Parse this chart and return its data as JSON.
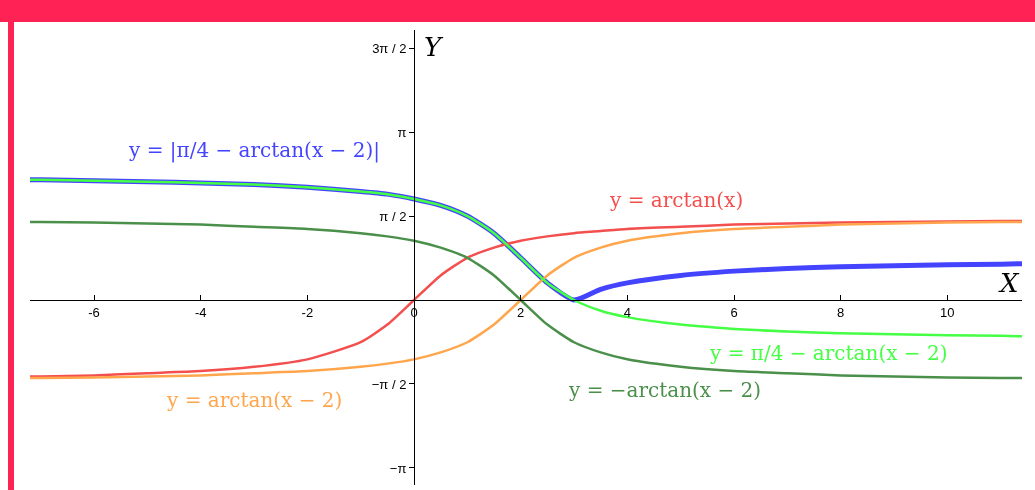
{
  "chart_data": {
    "type": "line",
    "xlabel": "X",
    "ylabel": "Y",
    "x": [
      -7.2,
      -7,
      -6,
      -5,
      -4,
      -3,
      -2,
      -1,
      -0.5,
      0,
      0.5,
      1,
      1.5,
      2,
      2.5,
      3,
      3.5,
      4,
      5,
      6,
      7,
      8,
      9,
      10,
      11,
      11.4
    ],
    "series": [
      {
        "name": "y = |π/4 − arctan(x − 2)|",
        "color": "#4444ff",
        "values": [
          2.25,
          2.25,
          2.23,
          2.21,
          2.19,
          2.16,
          2.11,
          2.03,
          1.98,
          1.89,
          1.77,
          1.57,
          1.25,
          0.79,
          0.32,
          0,
          0.2,
          0.32,
          0.46,
          0.54,
          0.59,
          0.62,
          0.64,
          0.66,
          0.67,
          0.68
        ]
      },
      {
        "name": "y = arctan(x)",
        "color": "#f44f4f",
        "values": [
          -1.43,
          -1.43,
          -1.41,
          -1.37,
          -1.33,
          -1.25,
          -1.11,
          -0.79,
          -0.46,
          0,
          0.46,
          0.79,
          0.98,
          1.11,
          1.19,
          1.25,
          1.29,
          1.33,
          1.37,
          1.41,
          1.43,
          1.45,
          1.46,
          1.47,
          1.48,
          1.48
        ]
      },
      {
        "name": "y = arctan(x − 2)",
        "color": "#ffa64d",
        "values": [
          -1.46,
          -1.46,
          -1.45,
          -1.43,
          -1.41,
          -1.37,
          -1.33,
          -1.25,
          -1.19,
          -1.11,
          -0.98,
          -0.79,
          -0.46,
          0,
          0.46,
          0.79,
          0.98,
          1.11,
          1.25,
          1.33,
          1.37,
          1.41,
          1.43,
          1.45,
          1.46,
          1.46
        ]
      },
      {
        "name": "y = −arctan(x − 2)",
        "color": "#4a8f4a",
        "values": [
          1.46,
          1.46,
          1.45,
          1.43,
          1.41,
          1.37,
          1.33,
          1.25,
          1.19,
          1.11,
          0.98,
          0.79,
          0.46,
          0,
          -0.46,
          -0.79,
          -0.98,
          -1.11,
          -1.25,
          -1.33,
          -1.37,
          -1.41,
          -1.43,
          -1.45,
          -1.46,
          -1.46
        ]
      },
      {
        "name": "y = π/4 − arctan(x − 2)",
        "color": "#44ff44",
        "values": [
          2.25,
          2.25,
          2.23,
          2.21,
          2.19,
          2.16,
          2.11,
          2.03,
          1.98,
          1.89,
          1.77,
          1.57,
          1.25,
          0.79,
          0.32,
          0,
          -0.2,
          -0.32,
          -0.46,
          -0.54,
          -0.59,
          -0.62,
          -0.64,
          -0.66,
          -0.67,
          -0.68
        ]
      }
    ],
    "xlim": [
      -7.2,
      11.4
    ],
    "ylim": [
      -3.46,
      5.05
    ],
    "xticks": [
      -6,
      -4,
      -2,
      0,
      2,
      4,
      6,
      8,
      10
    ],
    "yticks": [
      {
        "value": -3.1416,
        "label": "−π"
      },
      {
        "value": -1.5708,
        "label": "−π / 2"
      },
      {
        "value": 1.5708,
        "label": "π / 2"
      },
      {
        "value": 3.1416,
        "label": "π"
      },
      {
        "value": 4.7124,
        "label": "3π / 2"
      }
    ],
    "grid": false,
    "marker": "none",
    "line_style": "solid"
  }
}
